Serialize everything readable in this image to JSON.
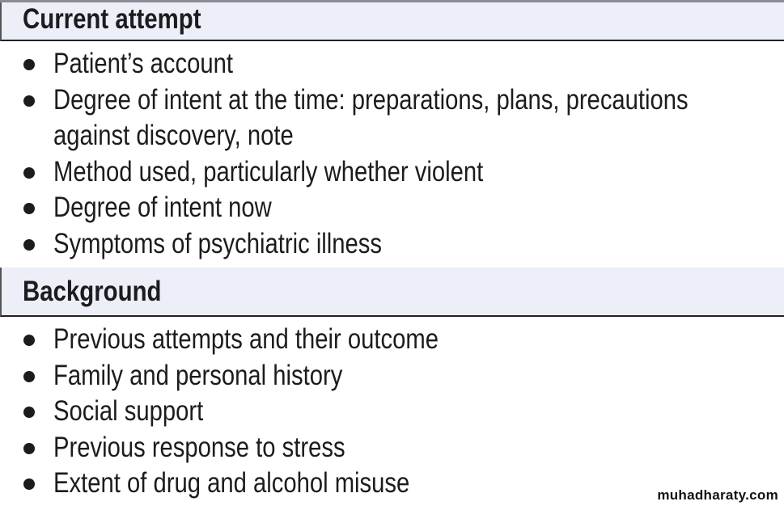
{
  "sections": [
    {
      "heading": "Current attempt",
      "items": [
        {
          "lines": [
            "Patient’s account"
          ]
        },
        {
          "lines": [
            "Degree of intent at the time: preparations, plans, precautions",
            "against discovery, note"
          ]
        },
        {
          "lines": [
            "Method used, particularly whether violent"
          ]
        },
        {
          "lines": [
            "Degree of intent now"
          ]
        },
        {
          "lines": [
            "Symptoms of psychiatric illness"
          ]
        }
      ]
    },
    {
      "heading": "Background",
      "items": [
        {
          "lines": [
            "Previous attempts and their outcome"
          ]
        },
        {
          "lines": [
            "Family and personal history"
          ]
        },
        {
          "lines": [
            "Social support"
          ]
        },
        {
          "lines": [
            "Previous response to stress"
          ]
        },
        {
          "lines": [
            "Extent of drug and alcohol misuse"
          ]
        }
      ]
    }
  ],
  "watermark": "muhadharaty.com",
  "colors": {
    "header_bg": "#eceef8",
    "text": "#1c1c1e"
  }
}
